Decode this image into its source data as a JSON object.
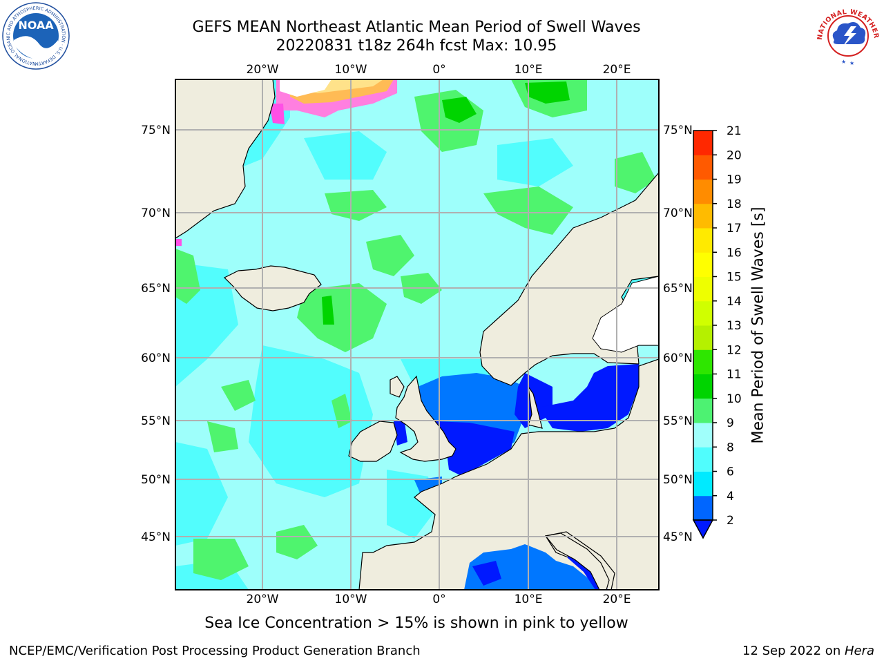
{
  "header": {
    "title_line1": "GEFS MEAN Northeast Atlantic Mean Period of Swell Waves",
    "title_line2": "20220831 t18z 264h fcst   Max: 10.95"
  },
  "logos": {
    "left": "NOAA",
    "left_ring_text": "NATIONAL OCEANIC AND ATMOSPHERIC ADMINISTRATION · U.S. DEPARTMENT OF COMMERCE",
    "right_ring_text": "NATIONAL WEATHER SERVICE"
  },
  "map": {
    "lon_labels": [
      "20°W",
      "10°W",
      "0°",
      "10°E",
      "20°E"
    ],
    "lat_labels": [
      "75°N",
      "70°N",
      "65°N",
      "60°N",
      "55°N",
      "50°N",
      "45°N"
    ],
    "grid": true,
    "colors": {
      "land": "#efedde",
      "ocean_light": "#9efffb",
      "ocean_cyan": "#52fdfd",
      "ocean_green": "#4ff46e",
      "baltic_blue": "#0019ff",
      "north_sea_blue": "#0077ff"
    }
  },
  "colorbar": {
    "label": "Mean Period of Swell Waves [s]",
    "ticks": [
      "2",
      "4",
      "6",
      "8",
      "9",
      "10",
      "11",
      "12",
      "13",
      "14",
      "15",
      "16",
      "17",
      "18",
      "19",
      "20",
      "21"
    ],
    "colors": [
      "#0066ff",
      "#00eaff",
      "#50fdfd",
      "#a0fffb",
      "#4df272",
      "#00d400",
      "#2ee600",
      "#b5f000",
      "#d0ff00",
      "#eeff00",
      "#ffff00",
      "#ffea00",
      "#ffbb00",
      "#ff8c00",
      "#ff5a00",
      "#ff2800"
    ],
    "under_color": "#0019ff"
  },
  "subtitle": "Sea Ice Concentration > 15% is shown in pink to yellow",
  "footer": {
    "left": "NCEP/EMC/Verification Post Processing Product Generation Branch",
    "right_date": "12 Sep 2022 on ",
    "right_host": "Hera"
  }
}
